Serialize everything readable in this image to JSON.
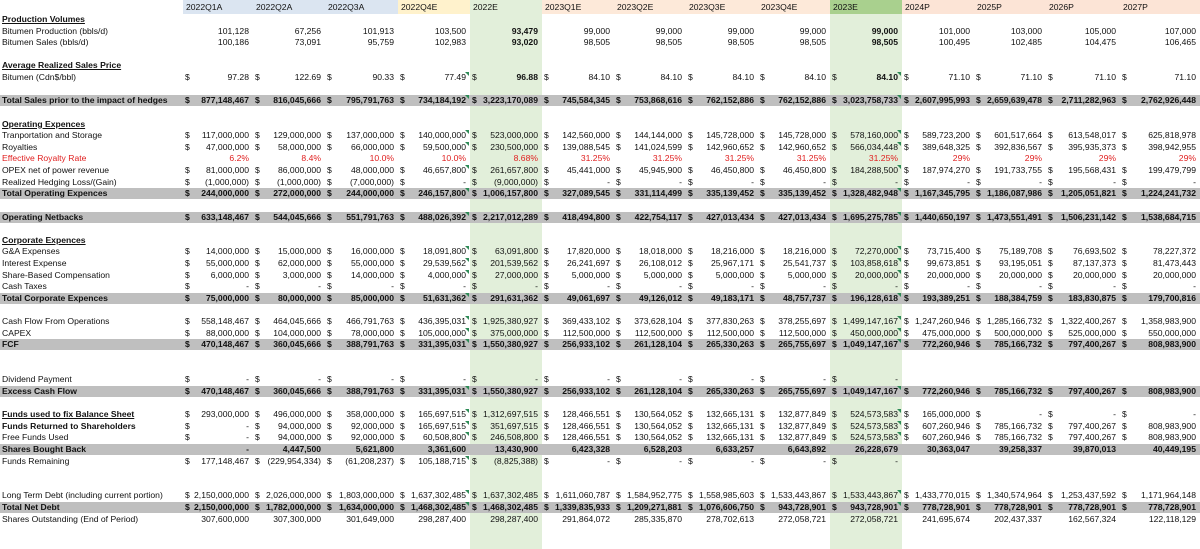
{
  "periods": [
    "2022Q1A",
    "2022Q2A",
    "2022Q3A",
    "2022Q4E",
    "2022E",
    "2023Q1E",
    "2023Q2E",
    "2023Q3E",
    "2023Q4E",
    "2023E",
    "2024P",
    "2025P",
    "2026P",
    "2027P"
  ],
  "header_colors": {
    "q_a": "#dbe5f1",
    "q_e": "#fff2cc",
    "fy22": "#e2efda",
    "q23": "#fde9d9",
    "fy23": "#a9d08e",
    "proj": "#fce4d6"
  },
  "rows": [
    {
      "label": "Production Volumes",
      "style": "ul"
    },
    {
      "label": "Bitumen Production (bbls/d)",
      "values": [
        "101,128",
        "67,256",
        "101,913",
        "103,500",
        "93,479",
        "99,000",
        "99,000",
        "99,000",
        "99,000",
        "99,000",
        "101,000",
        "103,000",
        "105,000",
        "107,000"
      ]
    },
    {
      "label": "Bitumen Sales (bbls/d)",
      "values": [
        "100,186",
        "73,091",
        "95,759",
        "102,983",
        "93,020",
        "98,505",
        "98,505",
        "98,505",
        "98,505",
        "98,505",
        "100,495",
        "102,485",
        "104,475",
        "106,465"
      ]
    },
    {
      "label": ""
    },
    {
      "label": "Average Realized Sales Price",
      "style": "ul"
    },
    {
      "label": "Bitumen (Cdn$/bbl)",
      "currency": true,
      "values": [
        "97.28",
        "122.69",
        "90.33",
        "77.49",
        "96.88",
        "84.10",
        "84.10",
        "84.10",
        "84.10",
        "84.10",
        "71.10",
        "71.10",
        "71.10",
        "71.10"
      ]
    },
    {
      "label": ""
    },
    {
      "label": "Total Sales prior to the impact of hedges",
      "style": "total",
      "currency": true,
      "values": [
        "877,148,467",
        "816,045,666",
        "795,791,763",
        "734,184,192",
        "3,223,170,089",
        "745,584,345",
        "753,868,616",
        "762,152,886",
        "762,152,886",
        "3,023,758,733",
        "2,607,995,993",
        "2,659,639,478",
        "2,711,282,963",
        "2,762,926,448"
      ]
    },
    {
      "label": ""
    },
    {
      "label": "Operating Expences",
      "style": "ul"
    },
    {
      "label": "Tranportation and Storage",
      "currency": true,
      "values": [
        "117,000,000",
        "129,000,000",
        "137,000,000",
        "140,000,000",
        "523,000,000",
        "142,560,000",
        "144,144,000",
        "145,728,000",
        "145,728,000",
        "578,160,000",
        "589,723,200",
        "601,517,664",
        "613,548,017",
        "625,818,978"
      ]
    },
    {
      "label": "Royalties",
      "currency": true,
      "values": [
        "47,000,000",
        "58,000,000",
        "66,000,000",
        "59,500,000",
        "230,500,000",
        "139,088,545",
        "141,024,599",
        "142,960,652",
        "142,960,652",
        "566,034,448",
        "389,648,325",
        "392,836,567",
        "395,935,373",
        "398,942,955"
      ]
    },
    {
      "label": "Effective Royalty Rate",
      "style": "red",
      "values": [
        "6.2%",
        "8.4%",
        "10.0%",
        "10.0%",
        "8.68%",
        "31.25%",
        "31.25%",
        "31.25%",
        "31.25%",
        "31.25%",
        "29%",
        "29%",
        "29%",
        "29%"
      ]
    },
    {
      "label": "OPEX net of power revenue",
      "currency": true,
      "values": [
        "81,000,000",
        "86,000,000",
        "48,000,000",
        "46,657,800",
        "261,657,800",
        "45,441,000",
        "45,945,900",
        "46,450,800",
        "46,450,800",
        "184,288,500",
        "187,974,270",
        "191,733,755",
        "195,568,431",
        "199,479,799"
      ]
    },
    {
      "label": "Realized Hedging Loss/(Gain)",
      "currency": true,
      "values": [
        "(1,000,000)",
        "(1,000,000)",
        "(7,000,000)",
        "-",
        "(9,000,000)",
        "-",
        "-",
        "-",
        "-",
        "-",
        "-",
        "-",
        "-",
        "-"
      ]
    },
    {
      "label": "Total Operating Expences",
      "style": "total",
      "currency": true,
      "values": [
        "244,000,000",
        "272,000,000",
        "244,000,000",
        "246,157,800",
        "1,006,157,800",
        "327,089,545",
        "331,114,499",
        "335,139,452",
        "335,139,452",
        "1,328,482,948",
        "1,167,345,795",
        "1,186,087,986",
        "1,205,051,821",
        "1,224,241,732"
      ]
    },
    {
      "label": ""
    },
    {
      "label": "Operating Netbacks",
      "style": "total",
      "currency": true,
      "values": [
        "633,148,467",
        "544,045,666",
        "551,791,763",
        "488,026,392",
        "2,217,012,289",
        "418,494,800",
        "422,754,117",
        "427,013,434",
        "427,013,434",
        "1,695,275,785",
        "1,440,650,197",
        "1,473,551,491",
        "1,506,231,142",
        "1,538,684,715"
      ]
    },
    {
      "label": ""
    },
    {
      "label": "Corporate Expences",
      "style": "ul"
    },
    {
      "label": "G&A Expenses",
      "currency": true,
      "values": [
        "14,000,000",
        "15,000,000",
        "16,000,000",
        "18,091,800",
        "63,091,800",
        "17,820,000",
        "18,018,000",
        "18,216,000",
        "18,216,000",
        "72,270,000",
        "73,715,400",
        "75,189,708",
        "76,693,502",
        "78,227,372"
      ]
    },
    {
      "label": "Interest Expense",
      "currency": true,
      "values": [
        "55,000,000",
        "62,000,000",
        "55,000,000",
        "29,539,562",
        "201,539,562",
        "26,241,697",
        "26,108,012",
        "25,967,171",
        "25,541,737",
        "103,858,618",
        "99,673,851",
        "93,195,051",
        "87,137,373",
        "81,473,443"
      ]
    },
    {
      "label": "Share-Based Compensation",
      "currency": true,
      "values": [
        "6,000,000",
        "3,000,000",
        "14,000,000",
        "4,000,000",
        "27,000,000",
        "5,000,000",
        "5,000,000",
        "5,000,000",
        "5,000,000",
        "20,000,000",
        "20,000,000",
        "20,000,000",
        "20,000,000",
        "20,000,000"
      ]
    },
    {
      "label": "Cash Taxes",
      "currency": true,
      "values": [
        "-",
        "-",
        "-",
        "-",
        "-",
        "-",
        "-",
        "-",
        "-",
        "-",
        "-",
        "-",
        "-",
        "-"
      ]
    },
    {
      "label": "Total Corporate Expences",
      "style": "total",
      "currency": true,
      "values": [
        "75,000,000",
        "80,000,000",
        "85,000,000",
        "51,631,362",
        "291,631,362",
        "49,061,697",
        "49,126,012",
        "49,183,171",
        "48,757,737",
        "196,128,618",
        "193,389,251",
        "188,384,759",
        "183,830,875",
        "179,700,816"
      ]
    },
    {
      "label": ""
    },
    {
      "label": "Cash Flow From Operations",
      "currency": true,
      "values": [
        "558,148,467",
        "464,045,666",
        "466,791,763",
        "436,395,031",
        "1,925,380,927",
        "369,433,102",
        "373,628,104",
        "377,830,263",
        "378,255,697",
        "1,499,147,167",
        "1,247,260,946",
        "1,285,166,732",
        "1,322,400,267",
        "1,358,983,900"
      ]
    },
    {
      "label": "CAPEX",
      "currency": true,
      "values": [
        "88,000,000",
        "104,000,000",
        "78,000,000",
        "105,000,000",
        "375,000,000",
        "112,500,000",
        "112,500,000",
        "112,500,000",
        "112,500,000",
        "450,000,000",
        "475,000,000",
        "500,000,000",
        "525,000,000",
        "550,000,000"
      ]
    },
    {
      "label": "FCF",
      "style": "total",
      "currency": true,
      "values": [
        "470,148,467",
        "360,045,666",
        "388,791,763",
        "331,395,031",
        "1,550,380,927",
        "256,933,102",
        "261,128,104",
        "265,330,263",
        "265,755,697",
        "1,049,147,167",
        "772,260,946",
        "785,166,732",
        "797,400,267",
        "808,983,900"
      ]
    },
    {
      "label": ""
    },
    {
      "label": ""
    },
    {
      "label": "Dividend Payment",
      "currency": true,
      "values": [
        "-",
        "-",
        "-",
        "-",
        "-",
        "-",
        "-",
        "-",
        "-",
        "-",
        "",
        "",
        "",
        ""
      ]
    },
    {
      "label": "Excess Cash Flow",
      "style": "total",
      "currency": true,
      "values": [
        "470,148,467",
        "360,045,666",
        "388,791,763",
        "331,395,031",
        "1,550,380,927",
        "256,933,102",
        "261,128,104",
        "265,330,263",
        "265,755,697",
        "1,049,147,167",
        "772,260,946",
        "785,166,732",
        "797,400,267",
        "808,983,900"
      ]
    },
    {
      "label": ""
    },
    {
      "label": "Funds used to fix Balance Sheet",
      "style": "ul",
      "currency": true,
      "values": [
        "293,000,000",
        "496,000,000",
        "358,000,000",
        "165,697,515",
        "1,312,697,515",
        "128,466,551",
        "130,564,052",
        "132,665,131",
        "132,877,849",
        "524,573,583",
        "165,000,000",
        "-",
        "-",
        "-"
      ]
    },
    {
      "label": "Funds Returned to Shareholders",
      "style": "bold",
      "currency": true,
      "values": [
        "-",
        "94,000,000",
        "92,000,000",
        "165,697,515",
        "351,697,515",
        "128,466,551",
        "130,564,052",
        "132,665,131",
        "132,877,849",
        "524,573,583",
        "607,260,946",
        "785,166,732",
        "797,400,267",
        "808,983,900"
      ]
    },
    {
      "label": "Free Funds Used",
      "currency": true,
      "values": [
        "-",
        "94,000,000",
        "92,000,000",
        "60,508,800",
        "246,508,800",
        "128,466,551",
        "130,564,052",
        "132,665,131",
        "132,877,849",
        "524,573,583",
        "607,260,946",
        "785,166,732",
        "797,400,267",
        "808,983,900"
      ]
    },
    {
      "label": "Shares Bought Back",
      "style": "total",
      "values": [
        "-",
        "4,447,500",
        "5,621,800",
        "3,361,600",
        "13,430,900",
        "6,423,328",
        "6,528,203",
        "6,633,257",
        "6,643,892",
        "26,228,679",
        "30,363,047",
        "39,258,337",
        "39,870,013",
        "40,449,195"
      ]
    },
    {
      "label": "Funds Remaining",
      "currency": true,
      "values": [
        "177,148,467",
        "(229,954,334)",
        "(61,208,237)",
        "105,188,715",
        "(8,825,388)",
        "-",
        "-",
        "-",
        "-",
        "-",
        "",
        "",
        "",
        ""
      ]
    },
    {
      "label": ""
    },
    {
      "label": ""
    },
    {
      "label": "Long Term Debt (including current portion)",
      "currency": true,
      "values": [
        "2,150,000,000",
        "2,026,000,000",
        "1,803,000,000",
        "1,637,302,485",
        "1,637,302,485",
        "1,611,060,787",
        "1,584,952,775",
        "1,558,985,603",
        "1,533,443,867",
        "1,533,443,867",
        "1,433,770,015",
        "1,340,574,964",
        "1,253,437,592",
        "1,171,964,148"
      ]
    },
    {
      "label": "Total Net Debt",
      "style": "total",
      "currency": true,
      "values": [
        "2,150,000,000",
        "1,782,000,000",
        "1,634,000,000",
        "1,468,302,485",
        "1,468,302,485",
        "1,339,835,933",
        "1,209,271,881",
        "1,076,606,750",
        "943,728,901",
        "943,728,901",
        "778,728,901",
        "778,728,901",
        "778,728,901",
        "778,728,901"
      ]
    },
    {
      "label": "Shares Outstanding (End of Period)",
      "values": [
        "307,600,000",
        "307,300,000",
        "301,649,000",
        "298,287,400",
        "298,287,400",
        "291,864,072",
        "285,335,870",
        "278,702,613",
        "272,058,721",
        "272,058,721",
        "241,695,674",
        "202,437,337",
        "162,567,324",
        "122,118,129"
      ]
    }
  ]
}
